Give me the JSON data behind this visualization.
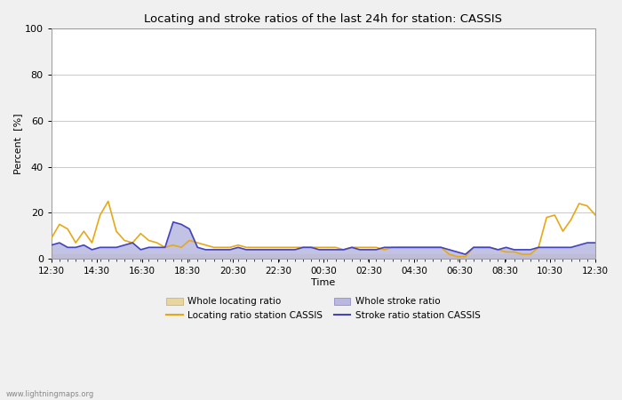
{
  "title": "Locating and stroke ratios of the last 24h for station: CASSIS",
  "xlabel": "Time",
  "ylabel": "Percent  [%]",
  "ylim": [
    0,
    100
  ],
  "yticks": [
    0,
    20,
    40,
    60,
    80,
    100
  ],
  "x_labels": [
    "12:30",
    "14:30",
    "16:30",
    "18:30",
    "20:30",
    "22:30",
    "00:30",
    "02:30",
    "04:30",
    "06:30",
    "08:30",
    "10:30",
    "12:30"
  ],
  "watermark": "www.lightningmaps.org",
  "locating_line_color": "#e6a817",
  "locating_fill_color": "#e8d5a0",
  "stroke_line_color": "#4444bb",
  "stroke_fill_color": "#b8b8e0",
  "background_color": "#f0f0f0",
  "plot_bg_color": "#ffffff",
  "locating_station": [
    9.0,
    15.0,
    13.0,
    7.0,
    12.0,
    7.0,
    19.0,
    25.0,
    12.0,
    8.0,
    7.0,
    11.0,
    8.0,
    7.0,
    5.0,
    6.0,
    5.0,
    8.0,
    7.0,
    6.0,
    5.0,
    5.0,
    5.0,
    6.0,
    5.0,
    5.0,
    5.0,
    5.0,
    5.0,
    5.0,
    5.0,
    5.0,
    5.0,
    5.0,
    5.0,
    5.0,
    4.0,
    5.0,
    5.0,
    5.0,
    5.0,
    4.0,
    5.0,
    5.0,
    5.0,
    5.0,
    5.0,
    5.0,
    5.0,
    2.0,
    1.0,
    1.0,
    5.0,
    5.0,
    5.0,
    4.0,
    3.0,
    3.0,
    2.0,
    2.0,
    5.0,
    18.0,
    19.0,
    12.0,
    17.0,
    24.0,
    23.0,
    19.0
  ],
  "locating_whole": [
    2.0,
    2.0,
    2.0,
    2.0,
    2.0,
    2.0,
    2.0,
    2.0,
    2.0,
    2.0,
    2.0,
    2.0,
    2.0,
    2.0,
    2.0,
    2.0,
    2.0,
    2.0,
    2.0,
    2.0,
    2.0,
    2.0,
    2.0,
    2.0,
    2.0,
    2.0,
    2.0,
    2.0,
    2.0,
    2.0,
    2.0,
    2.0,
    2.0,
    2.0,
    2.0,
    2.0,
    2.0,
    2.0,
    2.0,
    2.0,
    2.0,
    2.0,
    2.0,
    2.0,
    2.0,
    2.0,
    2.0,
    2.0,
    2.0,
    2.0,
    1.0,
    1.0,
    2.0,
    2.0,
    2.0,
    2.0,
    2.0,
    2.0,
    2.0,
    2.0,
    2.0,
    2.0,
    2.0,
    2.0,
    2.0,
    2.0,
    2.0,
    2.0
  ],
  "stroke_station": [
    6.0,
    7.0,
    5.0,
    5.0,
    6.0,
    4.0,
    5.0,
    5.0,
    5.0,
    6.0,
    7.0,
    4.0,
    5.0,
    5.0,
    5.0,
    16.0,
    15.0,
    13.0,
    5.0,
    4.0,
    4.0,
    4.0,
    4.0,
    5.0,
    4.0,
    4.0,
    4.0,
    4.0,
    4.0,
    4.0,
    4.0,
    5.0,
    5.0,
    4.0,
    4.0,
    4.0,
    4.0,
    5.0,
    4.0,
    4.0,
    4.0,
    5.0,
    5.0,
    5.0,
    5.0,
    5.0,
    5.0,
    5.0,
    5.0,
    4.0,
    3.0,
    2.0,
    5.0,
    5.0,
    5.0,
    4.0,
    5.0,
    4.0,
    4.0,
    4.0,
    5.0,
    5.0,
    5.0,
    5.0,
    5.0,
    6.0,
    7.0,
    7.0
  ],
  "stroke_whole": [
    1.0,
    1.0,
    1.0,
    1.0,
    1.0,
    1.0,
    1.0,
    1.0,
    1.0,
    1.0,
    1.0,
    1.0,
    1.0,
    1.0,
    1.0,
    1.0,
    1.0,
    1.0,
    1.0,
    1.0,
    1.0,
    1.0,
    1.0,
    1.0,
    1.0,
    1.0,
    1.0,
    1.0,
    1.0,
    1.0,
    1.0,
    1.0,
    1.0,
    1.0,
    1.0,
    1.0,
    1.0,
    1.0,
    1.0,
    1.0,
    1.0,
    1.0,
    1.0,
    1.0,
    1.0,
    1.0,
    1.0,
    1.0,
    1.0,
    1.0,
    1.0,
    1.0,
    1.0,
    1.0,
    1.0,
    1.0,
    1.0,
    1.0,
    1.0,
    1.0,
    1.0,
    1.0,
    1.0,
    1.0,
    1.0,
    1.0,
    1.0,
    1.0
  ],
  "n_points": 68,
  "figwidth": 7.0,
  "figheight": 4.5,
  "dpi": 100
}
